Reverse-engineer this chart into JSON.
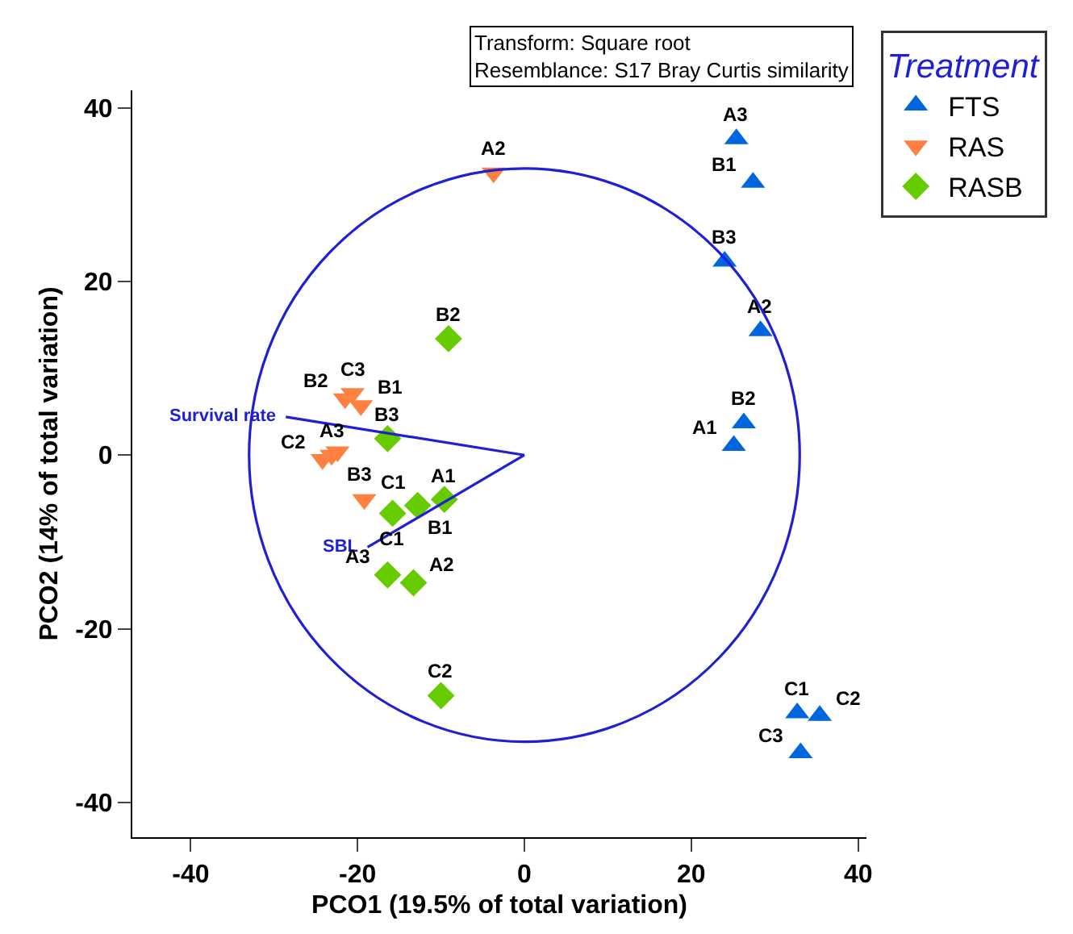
{
  "chart_data": {
    "type": "scatter",
    "xlabel": "PCO1 (19.5% of total variation)",
    "ylabel": "PCO2 (14% of total variation)",
    "legend_title": "Treatment",
    "legend": "top right",
    "grid": false,
    "xlim": [
      -47,
      41
    ],
    "ylim": [
      -44,
      42
    ],
    "xticks": [
      -40,
      -20,
      0,
      20,
      40
    ],
    "yticks": [
      -40,
      -20,
      0,
      20,
      40
    ],
    "annotations": [
      "Transform: Square root",
      "Resemblance: S17 Bray Curtis similarity",
      {
        "text": "Survival rate",
        "x": -28.6,
        "y": 4.4
      },
      {
        "text": "SBL",
        "x": -18.8,
        "y": -10.6
      }
    ],
    "series": [
      {
        "name": "FTS",
        "color": "#0066dd",
        "marker": "triangle",
        "x": [
          25.4,
          27.4,
          24.0,
          28.3,
          26.3,
          25.1,
          32.7,
          35.4,
          33.1
        ],
        "values": [
          36.4,
          31.4,
          22.3,
          14.3,
          3.7,
          1.1,
          -29.7,
          -30.0,
          -34.3
        ],
        "value_labels": [
          "A3",
          "B1",
          "B3",
          "A2",
          "B2",
          "A1",
          "C1",
          "C2",
          "C3"
        ]
      },
      {
        "name": "RAS",
        "color": "#ff8040",
        "marker": "triangle-down",
        "x": [
          -3.7,
          -21.5,
          -20.6,
          -19.6,
          -24.2,
          -23.1,
          -22.4,
          -19.2
        ],
        "values": [
          32.5,
          6.5,
          7.1,
          5.7,
          -0.5,
          0,
          0.4,
          -5.1
        ],
        "value_labels": [
          "A2",
          "B2",
          "C3",
          "B1",
          "C2",
          "A3",
          "B3",
          "C1"
        ]
      },
      {
        "name": "RASB",
        "color": "#66cc00",
        "marker": "diamond",
        "x": [
          -9.1,
          -16.4,
          -15.8,
          -12.8,
          -9.6,
          -16.4,
          -13.3,
          -10.0
        ],
        "values": [
          13.4,
          1.9,
          -6.7,
          -5.8,
          -5.1,
          -13.8,
          -14.7,
          -27.7
        ],
        "value_labels": [
          "B2",
          "B3",
          "C1",
          "B1",
          "A1",
          "A3",
          "A2",
          "C2"
        ]
      },
      {
        "type": "line",
        "color": "#1f1fd6",
        "x": [
          0,
          -28.6
        ],
        "values": [
          0,
          4.4
        ]
      },
      {
        "type": "line",
        "color": "#1f1fd6",
        "x": [
          0,
          -18.8
        ],
        "values": [
          0,
          -10.6
        ]
      }
    ]
  }
}
